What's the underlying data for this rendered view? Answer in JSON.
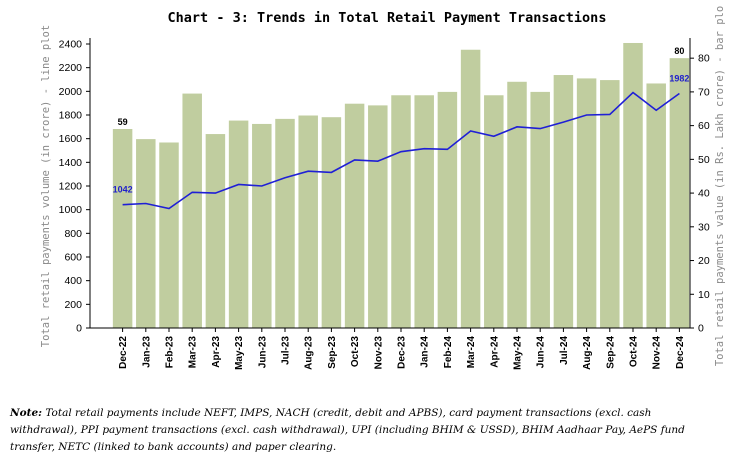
{
  "chart_data": {
    "type": "bar+line",
    "title": "Chart - 3: Trends in Total Retail Payment Transactions",
    "categories": [
      "Dec-22",
      "Jan-23",
      "Feb-23",
      "Mar-23",
      "Apr-23",
      "May-23",
      "Jun-23",
      "Jul-23",
      "Aug-23",
      "Sep-23",
      "Oct-23",
      "Nov-23",
      "Dec-23",
      "Jan-24",
      "Feb-24",
      "Mar-24",
      "Apr-24",
      "May-24",
      "Jun-24",
      "Jul-24",
      "Aug-24",
      "Sep-24",
      "Oct-24",
      "Nov-24",
      "Dec-24"
    ],
    "line_series": {
      "name": "Total retail payments volume (in crore) - line plot",
      "axis": "left",
      "values": [
        1042,
        1052,
        1010,
        1147,
        1140,
        1213,
        1200,
        1270,
        1325,
        1315,
        1420,
        1410,
        1490,
        1515,
        1510,
        1665,
        1620,
        1700,
        1685,
        1740,
        1800,
        1805,
        1990,
        1840,
        1982
      ]
    },
    "bar_series": {
      "name": "Total retail payments value (in Rs. Lakh crore) - bar plot",
      "axis": "right",
      "values": [
        59,
        56,
        55,
        69.5,
        57.5,
        61.5,
        60.5,
        62,
        63,
        62.5,
        66.5,
        66,
        69,
        69,
        70,
        82.5,
        69,
        73,
        70,
        75,
        74,
        73.5,
        84.5,
        72.5,
        80
      ]
    },
    "left_axis": {
      "label": "Total retail payments volume (in crore) - line plot",
      "ylim": [
        0,
        2400
      ],
      "ticks": [
        0,
        200,
        400,
        600,
        800,
        1000,
        1200,
        1400,
        1600,
        1800,
        2000,
        2200,
        2400
      ]
    },
    "right_axis": {
      "label": "Total retail payments value (in Rs. Lakh crore) - bar plo",
      "ylim": [
        0,
        84.2
      ],
      "ticks": [
        0,
        10,
        20,
        30,
        40,
        50,
        60,
        70,
        80
      ]
    },
    "data_labels": [
      {
        "series": "bar",
        "index": 0,
        "text": "59"
      },
      {
        "series": "bar",
        "index": 24,
        "text": "80"
      },
      {
        "series": "line",
        "index": 0,
        "text": "1042"
      },
      {
        "series": "line",
        "index": 24,
        "text": "1982"
      }
    ],
    "colors": {
      "bar": "#c0cd9f",
      "line": "#1f1fd6",
      "line_label": "#1f1fcc",
      "bar_label": "#000000",
      "axis_label": "#8a8a8a"
    }
  },
  "note": {
    "label": "Note:",
    "text": " Total retail payments include NEFT, IMPS, NACH (credit, debit and APBS), card payment transactions (excl. cash withdrawal), PPI payment transactions (excl. cash withdrawal), UPI (including BHIM & USSD), BHIM Aadhaar Pay, AePS fund transfer, NETC (linked to bank accounts) and paper clearing."
  }
}
